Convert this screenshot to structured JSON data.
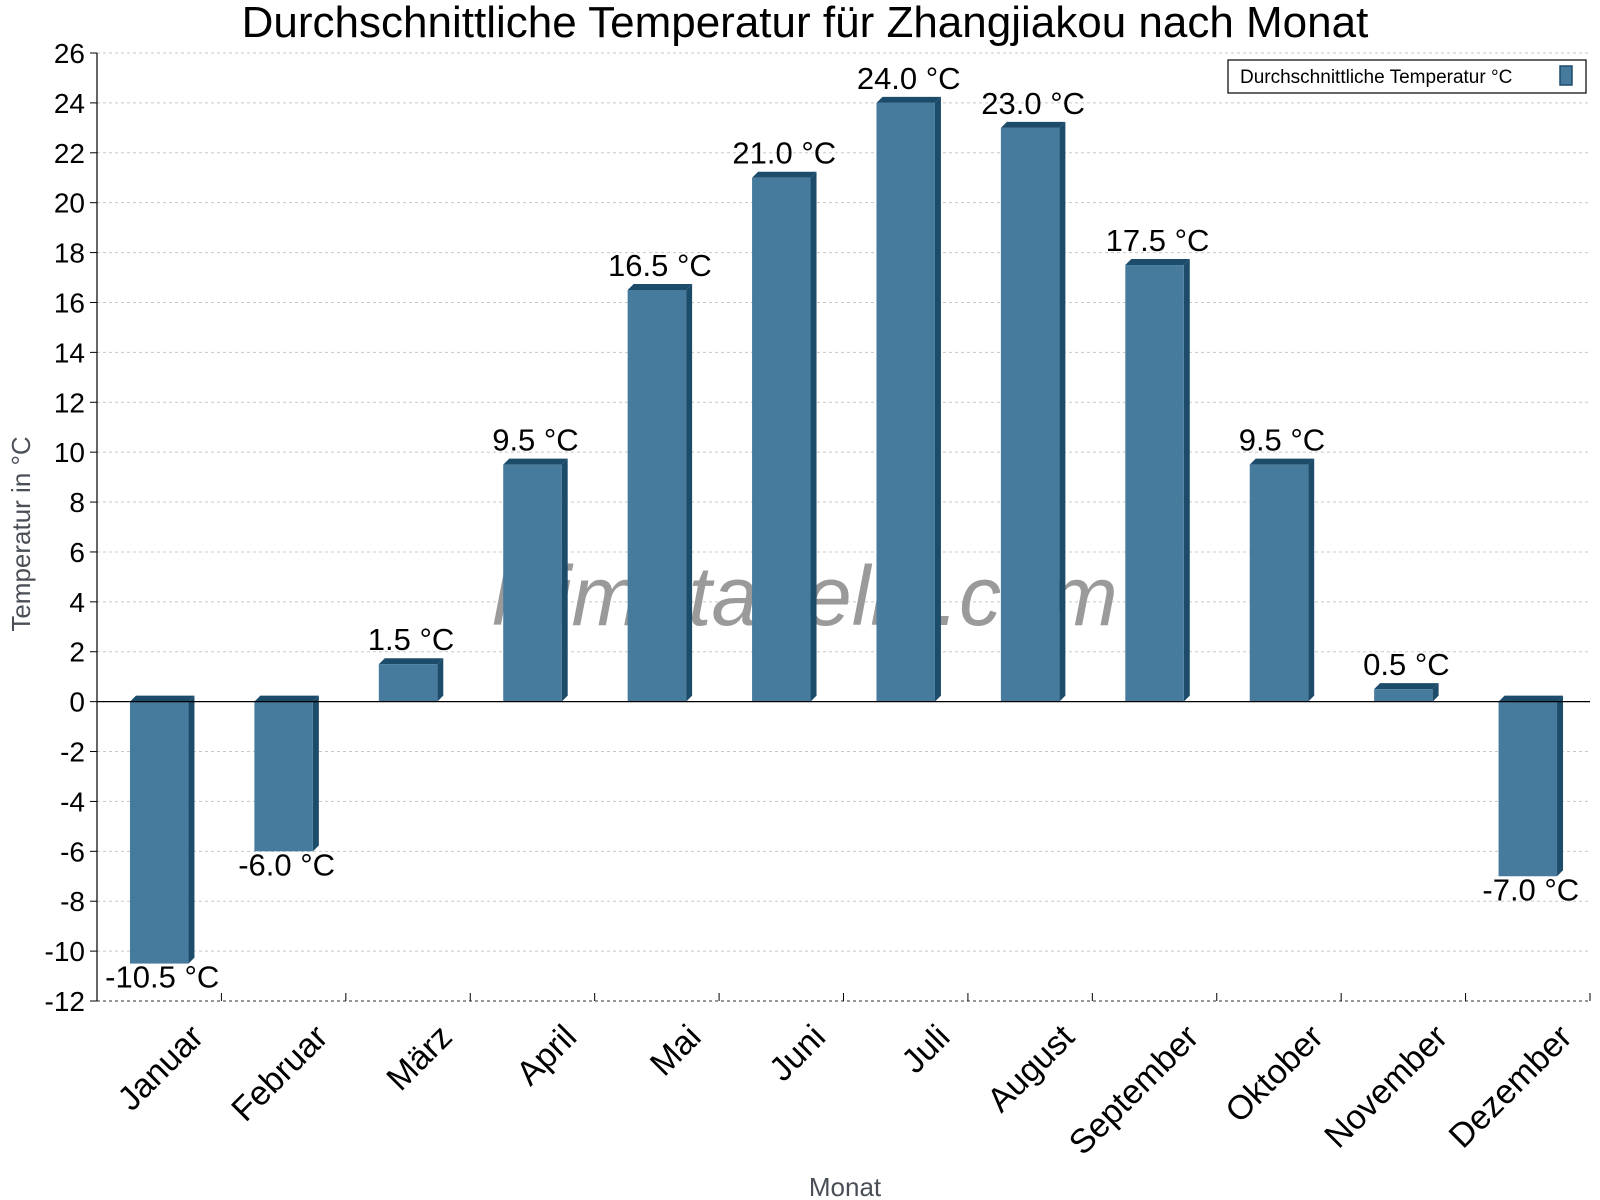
{
  "chart_data": {
    "type": "bar",
    "title": "Durchschnittliche Temperatur für Zhangjiakou nach Monat",
    "xlabel": "Monat",
    "ylabel": "Temperatur in °C",
    "categories": [
      "Januar",
      "Februar",
      "März",
      "April",
      "Mai",
      "Juni",
      "Juli",
      "August",
      "September",
      "Oktober",
      "November",
      "Dezember"
    ],
    "series": [
      {
        "name": "Durchschnittliche Temperatur °C",
        "values": [
          -10.5,
          -6.0,
          1.5,
          9.5,
          16.5,
          21.0,
          24.0,
          23.0,
          17.5,
          9.5,
          0.5,
          -7.0
        ],
        "labels": [
          "-10.5 °C",
          "-6.0 °C",
          "1.5 °C",
          "9.5 °C",
          "16.5 °C",
          "21.0 °C",
          "24.0 °C",
          "23.0 °C",
          "17.5 °C",
          "9.5 °C",
          "0.5 °C",
          "-7.0 °C"
        ]
      }
    ],
    "ylim": [
      -12,
      26
    ],
    "yticks": [
      26,
      24,
      22,
      20,
      18,
      16,
      14,
      12,
      10,
      8,
      6,
      4,
      2,
      0,
      -2,
      -4,
      -6,
      -8,
      -10,
      -12
    ],
    "grid": true,
    "legend_position": "top-right",
    "colors": {
      "bar_face": "#467b9d",
      "bar_side": "#1d4c6b",
      "bar_top": "#1d4c6b"
    }
  },
  "watermark": "klimatabelle.com"
}
